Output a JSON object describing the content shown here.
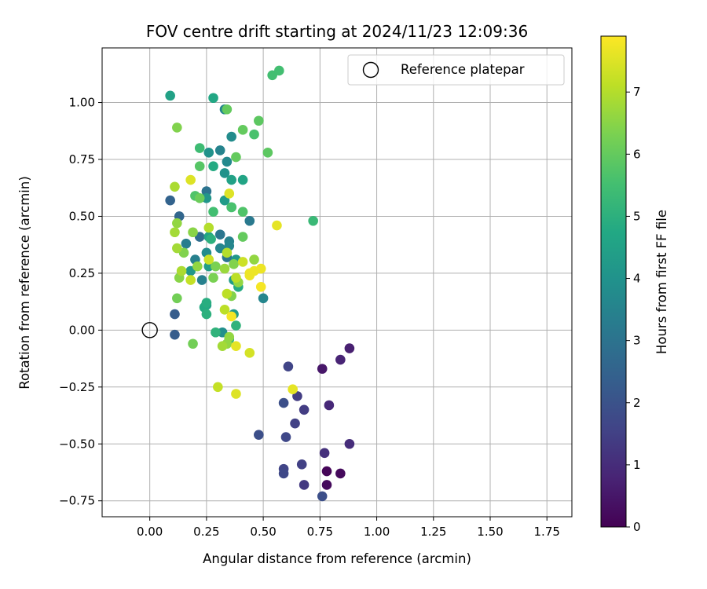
{
  "chart_data": {
    "type": "scatter",
    "title": "FOV centre drift starting at 2024/11/23 12:09:36",
    "xlabel": "Angular distance from reference (arcmin)",
    "ylabel": "Rotation from reference (arcmin)",
    "colorbar_label": "Hours from first FF file",
    "xlim": [
      -0.21,
      1.86
    ],
    "ylim": [
      -0.82,
      1.24
    ],
    "x_ticks": [
      "0.00",
      "0.25",
      "0.50",
      "0.75",
      "1.00",
      "1.25",
      "1.50",
      "1.75"
    ],
    "x_tick_values": [
      0,
      0.25,
      0.5,
      0.75,
      1.0,
      1.25,
      1.5,
      1.75
    ],
    "y_ticks": [
      "−0.75",
      "−0.50",
      "−0.25",
      "0.00",
      "0.25",
      "0.50",
      "0.75",
      "1.00"
    ],
    "y_tick_values": [
      -0.75,
      -0.5,
      -0.25,
      0,
      0.25,
      0.5,
      0.75,
      1.0
    ],
    "colorbar_range": [
      0,
      7.9
    ],
    "colorbar_ticks": [
      "0",
      "1",
      "2",
      "3",
      "4",
      "5",
      "6",
      "7"
    ],
    "colorbar_tick_values": [
      0,
      1,
      2,
      3,
      4,
      5,
      6,
      7
    ],
    "colormap": "viridis",
    "grid": true,
    "legend": {
      "label": "Reference platepar",
      "position": "top-right"
    },
    "reference_point": {
      "x": 0,
      "y": 0
    },
    "points": [
      {
        "x": 0.78,
        "y": -0.62,
        "t": 0.1
      },
      {
        "x": 0.84,
        "y": -0.63,
        "t": 0.2
      },
      {
        "x": 0.78,
        "y": -0.68,
        "t": 0.2
      },
      {
        "x": 0.76,
        "y": -0.17,
        "t": 0.5
      },
      {
        "x": 0.88,
        "y": -0.08,
        "t": 0.7
      },
      {
        "x": 0.84,
        "y": -0.13,
        "t": 0.8
      },
      {
        "x": 0.79,
        "y": -0.33,
        "t": 0.9
      },
      {
        "x": 0.88,
        "y": -0.5,
        "t": 1.0
      },
      {
        "x": 0.77,
        "y": -0.54,
        "t": 1.1
      },
      {
        "x": 0.68,
        "y": -0.68,
        "t": 1.3
      },
      {
        "x": 0.65,
        "y": -0.29,
        "t": 1.4
      },
      {
        "x": 0.68,
        "y": -0.35,
        "t": 1.4
      },
      {
        "x": 0.61,
        "y": -0.16,
        "t": 1.6
      },
      {
        "x": 0.64,
        "y": -0.41,
        "t": 1.5
      },
      {
        "x": 0.67,
        "y": -0.59,
        "t": 1.5
      },
      {
        "x": 0.59,
        "y": -0.61,
        "t": 1.6
      },
      {
        "x": 0.59,
        "y": -0.63,
        "t": 1.7
      },
      {
        "x": 0.6,
        "y": -0.47,
        "t": 1.7
      },
      {
        "x": 0.76,
        "y": -0.73,
        "t": 1.9
      },
      {
        "x": 0.59,
        "y": -0.32,
        "t": 1.9
      },
      {
        "x": 0.48,
        "y": -0.46,
        "t": 1.9
      },
      {
        "x": 0.11,
        "y": 0.07,
        "t": 2.3
      },
      {
        "x": 0.11,
        "y": -0.02,
        "t": 2.3
      },
      {
        "x": 0.09,
        "y": 0.57,
        "t": 2.5
      },
      {
        "x": 0.13,
        "y": 0.5,
        "t": 2.6
      },
      {
        "x": 0.22,
        "y": 0.41,
        "t": 2.8
      },
      {
        "x": 0.25,
        "y": 0.61,
        "t": 3.0
      },
      {
        "x": 0.31,
        "y": 0.42,
        "t": 3.1
      },
      {
        "x": 0.34,
        "y": 0.32,
        "t": 3.1
      },
      {
        "x": 0.44,
        "y": 0.48,
        "t": 3.2
      },
      {
        "x": 0.16,
        "y": 0.38,
        "t": 3.3
      },
      {
        "x": 0.2,
        "y": 0.31,
        "t": 3.4
      },
      {
        "x": 0.23,
        "y": 0.22,
        "t": 3.4
      },
      {
        "x": 0.31,
        "y": 0.79,
        "t": 3.5
      },
      {
        "x": 0.33,
        "y": 0.97,
        "t": 3.6
      },
      {
        "x": 0.35,
        "y": 0.39,
        "t": 3.5
      },
      {
        "x": 0.34,
        "y": 0.74,
        "t": 3.7
      },
      {
        "x": 0.35,
        "y": 0.37,
        "t": 3.6
      },
      {
        "x": 0.5,
        "y": 0.14,
        "t": 3.6
      },
      {
        "x": 0.36,
        "y": 0.85,
        "t": 3.8
      },
      {
        "x": 0.31,
        "y": 0.36,
        "t": 3.6
      },
      {
        "x": 0.25,
        "y": 0.34,
        "t": 3.8
      },
      {
        "x": 0.32,
        "y": -0.01,
        "t": 3.9
      },
      {
        "x": 0.26,
        "y": 0.78,
        "t": 4.0
      },
      {
        "x": 0.33,
        "y": 0.69,
        "t": 4.0
      },
      {
        "x": 0.25,
        "y": 0.58,
        "t": 4.1
      },
      {
        "x": 0.18,
        "y": 0.26,
        "t": 4.2
      },
      {
        "x": 0.36,
        "y": 0.54,
        "t": 4.2
      },
      {
        "x": 0.38,
        "y": 0.31,
        "t": 4.2
      },
      {
        "x": 0.33,
        "y": 0.57,
        "t": 4.3
      },
      {
        "x": 0.37,
        "y": 0.22,
        "t": 4.3
      },
      {
        "x": 0.37,
        "y": 0.07,
        "t": 4.3
      },
      {
        "x": 0.25,
        "y": 0.11,
        "t": 4.4
      },
      {
        "x": 0.26,
        "y": 0.28,
        "t": 4.4
      },
      {
        "x": 0.09,
        "y": 1.03,
        "t": 4.5
      },
      {
        "x": 0.36,
        "y": 0.66,
        "t": 4.5
      },
      {
        "x": 0.41,
        "y": 0.66,
        "t": 4.6
      },
      {
        "x": 0.26,
        "y": 0.41,
        "t": 4.6
      },
      {
        "x": 0.28,
        "y": 1.02,
        "t": 4.7
      },
      {
        "x": 0.24,
        "y": 0.1,
        "t": 4.8
      },
      {
        "x": 0.28,
        "y": 0.72,
        "t": 4.8
      },
      {
        "x": 0.39,
        "y": 0.19,
        "t": 4.8
      },
      {
        "x": 0.25,
        "y": 0.12,
        "t": 4.9
      },
      {
        "x": 0.27,
        "y": 0.4,
        "t": 5.0
      },
      {
        "x": 0.25,
        "y": 0.07,
        "t": 5.0
      },
      {
        "x": 0.38,
        "y": 0.02,
        "t": 5.1
      },
      {
        "x": 0.29,
        "y": -0.01,
        "t": 5.1
      },
      {
        "x": 0.72,
        "y": 0.48,
        "t": 5.3
      },
      {
        "x": 0.35,
        "y": -0.04,
        "t": 5.2
      },
      {
        "x": 0.22,
        "y": 0.8,
        "t": 5.4
      },
      {
        "x": 0.54,
        "y": 1.12,
        "t": 5.5
      },
      {
        "x": 0.57,
        "y": 1.14,
        "t": 5.5
      },
      {
        "x": 0.28,
        "y": 0.52,
        "t": 5.5
      },
      {
        "x": 0.36,
        "y": 0.54,
        "t": 5.6
      },
      {
        "x": 0.46,
        "y": 0.86,
        "t": 5.6
      },
      {
        "x": 0.41,
        "y": 0.52,
        "t": 5.7
      },
      {
        "x": 0.2,
        "y": 0.59,
        "t": 5.7
      },
      {
        "x": 0.22,
        "y": 0.72,
        "t": 5.8
      },
      {
        "x": 0.48,
        "y": 0.92,
        "t": 5.9
      },
      {
        "x": 0.52,
        "y": 0.78,
        "t": 5.9
      },
      {
        "x": 0.41,
        "y": 0.88,
        "t": 6.0
      },
      {
        "x": 0.38,
        "y": 0.76,
        "t": 6.0
      },
      {
        "x": 0.34,
        "y": 0.97,
        "t": 6.0
      },
      {
        "x": 0.41,
        "y": 0.41,
        "t": 6.0
      },
      {
        "x": 0.22,
        "y": 0.58,
        "t": 6.1
      },
      {
        "x": 0.12,
        "y": 0.14,
        "t": 6.2
      },
      {
        "x": 0.19,
        "y": -0.06,
        "t": 6.2
      },
      {
        "x": 0.28,
        "y": 0.23,
        "t": 6.3
      },
      {
        "x": 0.29,
        "y": 0.28,
        "t": 6.3
      },
      {
        "x": 0.36,
        "y": 0.15,
        "t": 6.4
      },
      {
        "x": 0.37,
        "y": 0.29,
        "t": 6.4
      },
      {
        "x": 0.12,
        "y": 0.89,
        "t": 6.4
      },
      {
        "x": 0.15,
        "y": 0.34,
        "t": 6.4
      },
      {
        "x": 0.13,
        "y": 0.23,
        "t": 6.5
      },
      {
        "x": 0.19,
        "y": 0.43,
        "t": 6.5
      },
      {
        "x": 0.21,
        "y": 0.28,
        "t": 6.6
      },
      {
        "x": 0.46,
        "y": 0.31,
        "t": 6.6
      },
      {
        "x": 0.12,
        "y": 0.47,
        "t": 6.6
      },
      {
        "x": 0.34,
        "y": -0.06,
        "t": 6.6
      },
      {
        "x": 0.35,
        "y": -0.03,
        "t": 6.6
      },
      {
        "x": 0.39,
        "y": 0.21,
        "t": 6.6
      },
      {
        "x": 0.33,
        "y": 0.27,
        "t": 6.7
      },
      {
        "x": 0.11,
        "y": 0.43,
        "t": 6.8
      },
      {
        "x": 0.12,
        "y": 0.36,
        "t": 6.8
      },
      {
        "x": 0.32,
        "y": -0.07,
        "t": 6.8
      },
      {
        "x": 0.11,
        "y": 0.63,
        "t": 6.9
      },
      {
        "x": 0.14,
        "y": 0.26,
        "t": 6.9
      },
      {
        "x": 0.34,
        "y": 0.34,
        "t": 7.0
      },
      {
        "x": 0.26,
        "y": 0.45,
        "t": 7.0
      },
      {
        "x": 0.38,
        "y": 0.23,
        "t": 7.1
      },
      {
        "x": 0.34,
        "y": 0.16,
        "t": 7.1
      },
      {
        "x": 0.33,
        "y": 0.09,
        "t": 7.1
      },
      {
        "x": 0.18,
        "y": 0.22,
        "t": 7.2
      },
      {
        "x": 0.3,
        "y": -0.25,
        "t": 7.2
      },
      {
        "x": 0.41,
        "y": 0.3,
        "t": 7.3
      },
      {
        "x": 0.26,
        "y": 0.31,
        "t": 7.3
      },
      {
        "x": 0.44,
        "y": -0.1,
        "t": 7.4
      },
      {
        "x": 0.18,
        "y": 0.66,
        "t": 7.5
      },
      {
        "x": 0.35,
        "y": 0.6,
        "t": 7.5
      },
      {
        "x": 0.38,
        "y": -0.28,
        "t": 7.5
      },
      {
        "x": 0.38,
        "y": -0.07,
        "t": 7.6
      },
      {
        "x": 0.56,
        "y": 0.46,
        "t": 7.6
      },
      {
        "x": 0.63,
        "y": -0.26,
        "t": 7.6
      },
      {
        "x": 0.44,
        "y": 0.25,
        "t": 7.7
      },
      {
        "x": 0.46,
        "y": 0.26,
        "t": 7.7
      },
      {
        "x": 0.49,
        "y": 0.27,
        "t": 7.7
      },
      {
        "x": 0.44,
        "y": 0.24,
        "t": 7.7
      },
      {
        "x": 0.49,
        "y": 0.19,
        "t": 7.8
      },
      {
        "x": 0.36,
        "y": 0.06,
        "t": 7.8
      }
    ]
  }
}
